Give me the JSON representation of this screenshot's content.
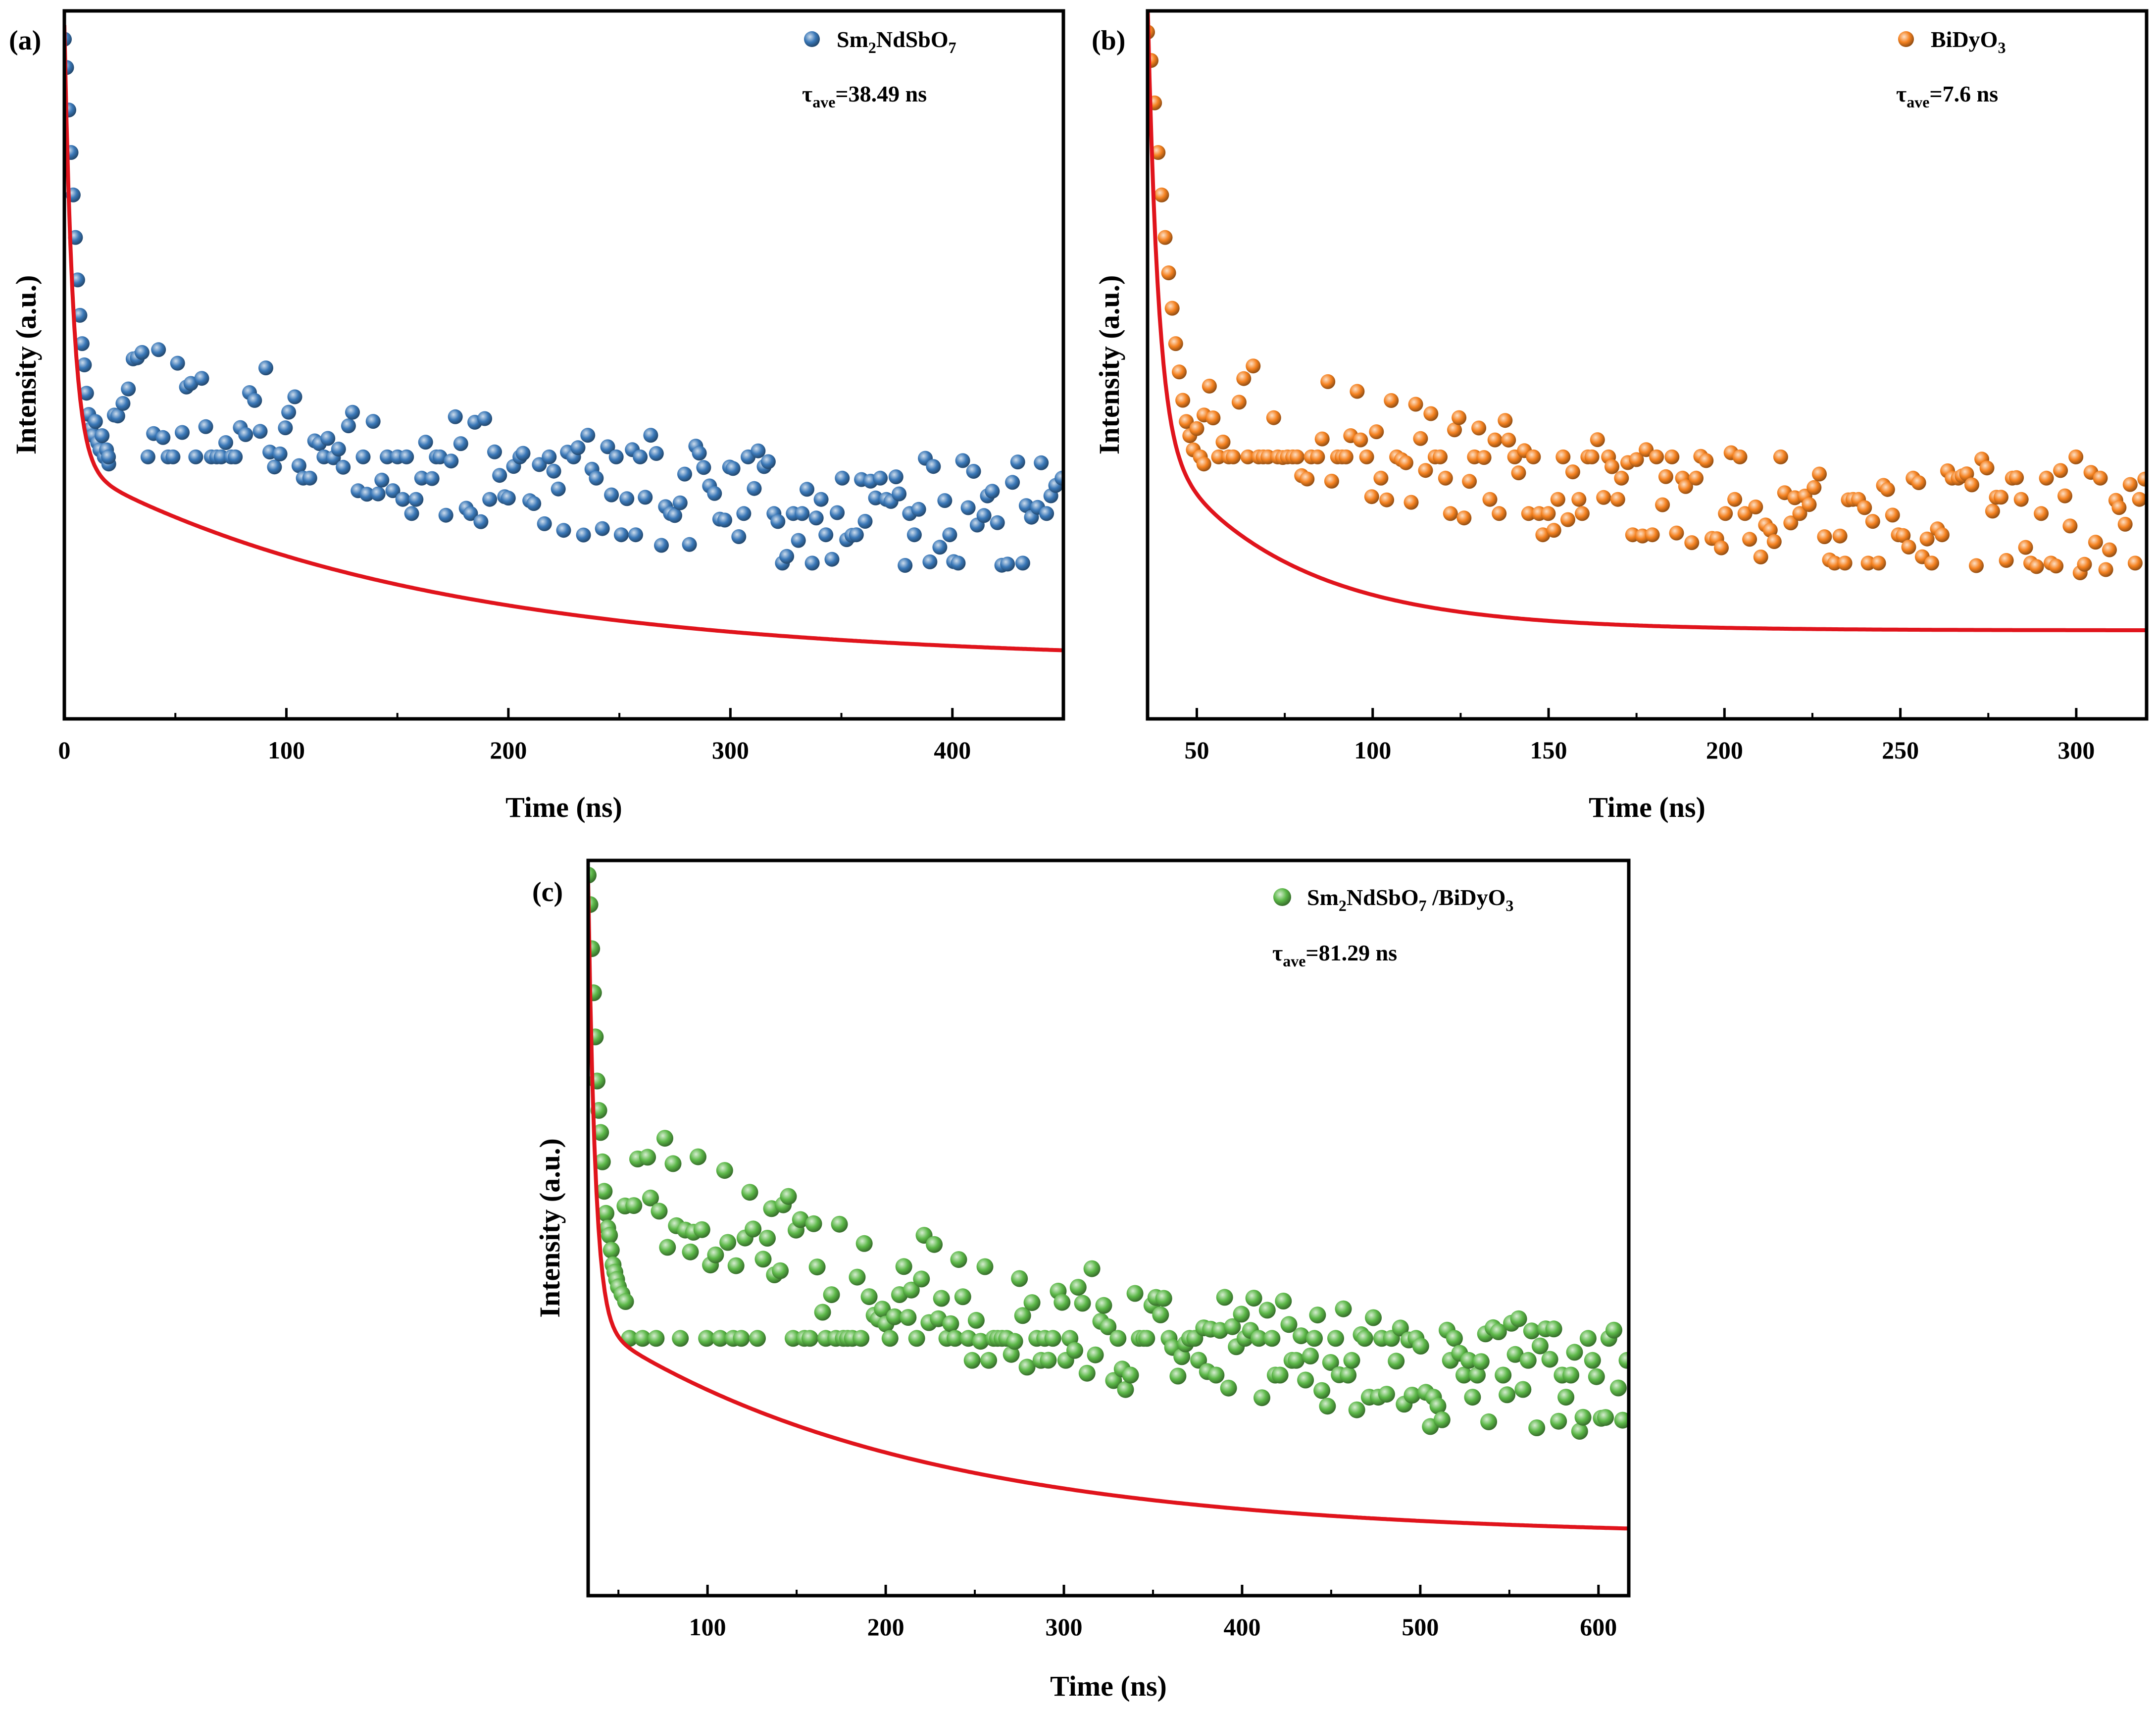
{
  "figure": {
    "description_free": true
  },
  "chart_data": [
    {
      "type": "scatter",
      "panel_label": "(a)",
      "title": "",
      "xlabel": "Time (ns)",
      "ylabel": "Intensity (a.u.)",
      "xlim": [
        0,
        450
      ],
      "ylim": [
        0,
        1
      ],
      "grid": false,
      "xticks": [
        0,
        100,
        200,
        300,
        400
      ],
      "xtick_labels": [
        "0",
        "100",
        "200",
        "300",
        "400"
      ],
      "legend": {
        "placement": "top-right",
        "label_main": "Sm",
        "label_parts": [
          [
            "Sm",
            ""
          ],
          [
            "2",
            "sub"
          ],
          [
            "NdSbO",
            ""
          ],
          [
            "7",
            "sub"
          ]
        ]
      },
      "annotation": {
        "parts": [
          [
            "τ",
            ""
          ],
          [
            "ave",
            "sub"
          ],
          [
            "=38.49 ns",
            ""
          ]
        ]
      },
      "marker_color": "#3a78b8",
      "fit_color": "#e0141c",
      "series": [
        {
          "name": "Sm2NdSbO7",
          "kind": "points",
          "head_x": [
            0,
            1,
            2,
            3,
            4,
            5,
            6,
            7,
            8,
            9,
            10,
            11,
            12,
            13,
            14,
            15,
            16,
            17,
            18,
            19,
            20
          ],
          "head_y": [
            0.96,
            0.92,
            0.86,
            0.8,
            0.74,
            0.68,
            0.62,
            0.57,
            0.53,
            0.5,
            0.46,
            0.43,
            0.41,
            0.4,
            0.42,
            0.39,
            0.38,
            0.4,
            0.37,
            0.38,
            0.36
          ],
          "noise_x_start": 20,
          "noise_x_end": 450,
          "noise_step": 2.2,
          "plateau": 0.08,
          "amp": 0.24,
          "tau": 180,
          "quant_levels": [
            0.08,
            0.17,
            0.22,
            0.26,
            0.29,
            0.31,
            0.34,
            0.37
          ],
          "seed": 11
        },
        {
          "name": "fit",
          "kind": "line",
          "x_start": 0,
          "x_end": 450,
          "a1": 0.62,
          "t1": 4.0,
          "a2": 0.28,
          "t2": 160,
          "c": 0.02
        }
      ]
    },
    {
      "type": "scatter",
      "panel_label": "(b)",
      "title": "",
      "xlabel": "Time (ns)",
      "ylabel": "Intensity (a.u.)",
      "xlim": [
        36,
        320
      ],
      "ylim": [
        0,
        1
      ],
      "grid": false,
      "xticks": [
        50,
        100,
        150,
        200,
        250,
        300
      ],
      "xtick_labels": [
        "50",
        "100",
        "150",
        "200",
        "250",
        "300"
      ],
      "legend": {
        "placement": "top-right",
        "label_parts": [
          [
            "BiDyO",
            ""
          ],
          [
            "3",
            "sub"
          ]
        ]
      },
      "annotation": {
        "parts": [
          [
            "τ",
            ""
          ],
          [
            "ave",
            "sub"
          ],
          [
            "=7.6 ns",
            ""
          ]
        ]
      },
      "marker_color": "#f58220",
      "fit_color": "#e0141c",
      "series": [
        {
          "name": "BiDyO3",
          "kind": "points",
          "head_x": [
            36,
            37,
            38,
            39,
            40,
            41,
            42,
            43,
            44,
            45,
            46,
            47,
            48,
            49,
            50,
            51,
            52
          ],
          "head_y": [
            0.97,
            0.93,
            0.87,
            0.8,
            0.74,
            0.68,
            0.63,
            0.58,
            0.53,
            0.49,
            0.45,
            0.42,
            0.4,
            0.38,
            0.41,
            0.37,
            0.36
          ],
          "noise_x_start": 52,
          "noise_x_end": 320,
          "noise_step": 1.4,
          "plateau": 0.09,
          "amp": 0.2,
          "tau": 90,
          "quant_levels": [
            0.08,
            0.17,
            0.22,
            0.26,
            0.29,
            0.31,
            0.34,
            0.37
          ],
          "seed": 23
        },
        {
          "name": "fit",
          "kind": "line",
          "x_start": 36,
          "x_end": 320,
          "a1": 0.62,
          "t1": 3.0,
          "a2": 0.27,
          "t2": 38,
          "c": 0.065,
          "x0": 36
        }
      ]
    },
    {
      "type": "scatter",
      "panel_label": "(c)",
      "title": "",
      "xlabel": "Time (ns)",
      "ylabel": "Intensity (a.u.)",
      "xlim": [
        33,
        617
      ],
      "ylim": [
        0,
        1
      ],
      "grid": false,
      "xticks": [
        100,
        200,
        300,
        400,
        500,
        600
      ],
      "xtick_labels": [
        "100",
        "200",
        "300",
        "400",
        "500",
        "600"
      ],
      "legend": {
        "placement": "top-right",
        "label_parts": [
          [
            "Sm",
            ""
          ],
          [
            "2",
            "sub"
          ],
          [
            "NdSbO",
            ""
          ],
          [
            "7",
            "sub"
          ],
          [
            " /BiDyO",
            ""
          ],
          [
            "3",
            "sub"
          ]
        ]
      },
      "annotation": {
        "parts": [
          [
            "τ",
            ""
          ],
          [
            "ave",
            "sub"
          ],
          [
            "=81.29 ns",
            ""
          ]
        ]
      },
      "marker_color": "#5cb848",
      "fit_color": "#e0141c",
      "series": [
        {
          "name": "Sm2NdSbO7/BiDyO3",
          "kind": "points",
          "head_x": [
            33,
            34,
            35,
            36,
            37,
            38,
            39,
            40,
            41,
            42,
            43,
            44,
            45,
            46,
            47,
            48,
            49,
            50,
            52,
            54
          ],
          "head_y": [
            0.98,
            0.94,
            0.88,
            0.82,
            0.76,
            0.7,
            0.66,
            0.63,
            0.59,
            0.55,
            0.52,
            0.5,
            0.49,
            0.47,
            0.45,
            0.44,
            0.43,
            0.42,
            0.41,
            0.4
          ],
          "noise_x_start": 54,
          "noise_x_end": 617,
          "noise_step": 2.4,
          "plateau": 0.09,
          "amp": 0.3,
          "tau": 230,
          "quant_levels": [
            0.09,
            0.18,
            0.23,
            0.27,
            0.3,
            0.32,
            0.35
          ],
          "seed": 37
        },
        {
          "name": "fit",
          "kind": "line",
          "x_start": 33,
          "x_end": 617,
          "a1": 0.6,
          "t1": 4.0,
          "a2": 0.29,
          "t2": 180,
          "c": 0.02,
          "x0": 33
        }
      ]
    }
  ]
}
